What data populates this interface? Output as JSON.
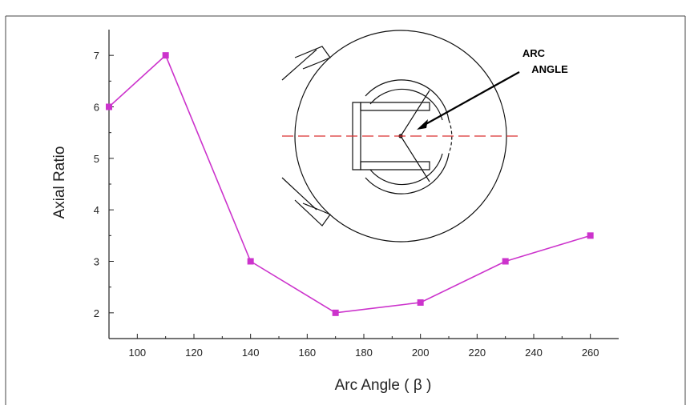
{
  "chart_data": {
    "type": "line",
    "xlabel": "Arc Angle ( β )",
    "ylabel": "Axial Ratio",
    "x": [
      90,
      110,
      140,
      170,
      200,
      230,
      260
    ],
    "series": [
      {
        "values": [
          6,
          7,
          3,
          2,
          2.2,
          3,
          3.5
        ],
        "color": "#cc33cc",
        "marker": "square"
      }
    ],
    "xlim": [
      90,
      270
    ],
    "ylim": [
      1.5,
      7.5
    ],
    "xticks": [
      "100",
      "120",
      "140",
      "160",
      "180",
      "200",
      "220",
      "240",
      "260"
    ],
    "yticks": [
      "2",
      "3",
      "4",
      "5",
      "6",
      "7"
    ],
    "grid": false,
    "annotation": {
      "line1": "ARC",
      "line2": "ANGLE"
    }
  }
}
